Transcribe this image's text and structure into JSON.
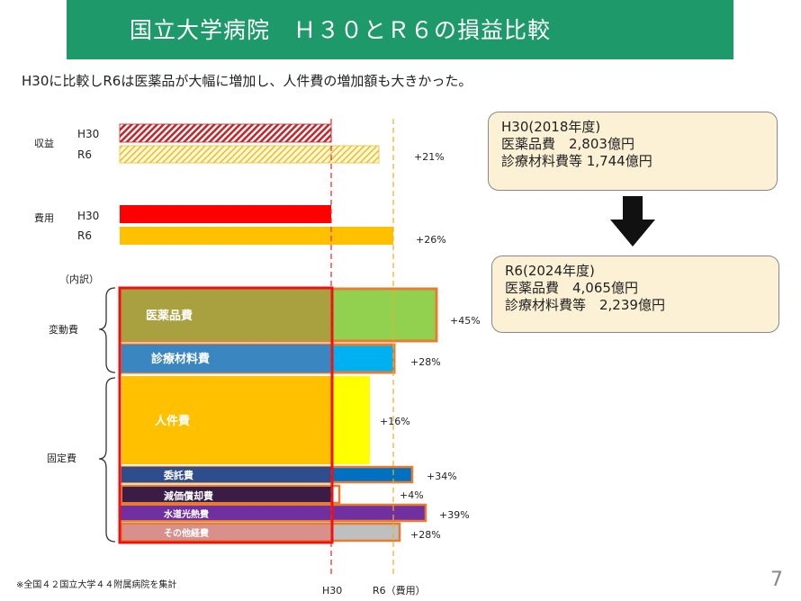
{
  "header": {
    "title": "国立大学病院　Ｈ３０とＲ６の損益比較",
    "subtitle": "H30に比較しR6は医薬品が大幅に増加し、人件費の増加額も大きかった。"
  },
  "chart_data": {
    "type": "bar",
    "orientation": "horizontal",
    "reference_lines": [
      "H30",
      "R6（費用）"
    ],
    "groups": [
      {
        "label": "収益",
        "rows": [
          {
            "label": "H30",
            "h30": 1.0,
            "r6": 1.0
          },
          {
            "label": "R6",
            "h30": 1.21,
            "r6": 1.21,
            "change": "+21%"
          }
        ]
      },
      {
        "label": "費用",
        "rows": [
          {
            "label": "H30",
            "h30": 1.0,
            "r6": 1.0
          },
          {
            "label": "R6",
            "h30": 1.26,
            "r6": 1.26,
            "change": "+26%"
          }
        ]
      }
    ],
    "breakdown_label": "（内訳）",
    "categories": [
      {
        "group": "変動費",
        "name": "医薬品費",
        "change": "+45%",
        "share": 0.22
      },
      {
        "group": "変動費",
        "name": "診療材料費",
        "change": "+28%",
        "share": 0.14
      },
      {
        "group": "固定費",
        "name": "人件費",
        "change": "+16%",
        "share": 0.44
      },
      {
        "group": "固定費",
        "name": "委託費",
        "change": "+34%",
        "share": 0.06
      },
      {
        "group": "固定費",
        "name": "減価償却費",
        "change": "+4%",
        "share": 0.07
      },
      {
        "group": "固定費",
        "name": "水道光熱費",
        "change": "+39%",
        "share": 0.04
      },
      {
        "group": "固定費",
        "name": "その他経費",
        "change": "+28%",
        "share": 0.07
      }
    ],
    "group_labels": [
      "変動費",
      "固定費"
    ]
  },
  "notes": {
    "h30": {
      "title": "H30(2018年度)",
      "line1": "医薬品費　2,803億円",
      "line2": "診療材料費等 1,744億円"
    },
    "r6": {
      "title": "R6(2024年度)",
      "line1": "医薬品費　4,065億円",
      "line2": "診療材料費等　2,239億円"
    }
  },
  "footnote": "※全国４２国立大学４４附属病院を集計",
  "page_number": "7",
  "colors": {
    "title_band": "#1e9a6a",
    "h30_outline": "#ee1111",
    "r6_outline": "#e87d32",
    "revenue_h30": "#c0282c",
    "revenue_r6": "#e8c030",
    "cost_h30": "#ff0000",
    "cost_r6": "#ffc000",
    "drug_h30": "#a9a140",
    "drug_r6": "#92d050",
    "material_h30": "#3a86c0",
    "material_r6": "#00b0f0",
    "personnel_h30": "#ffc000",
    "personnel_r6": "#ffff00",
    "outsourcing_h30": "#2e4d8c",
    "outsourcing_r6": "#0070c0",
    "depreciation_h30": "#3a1d46",
    "depreciation_r6": "#ffffff",
    "utility_h30": "#7030a0",
    "utility_r6": "#7030a0",
    "other_h30": "#d8908c",
    "other_r6": "#bfbfbf"
  }
}
